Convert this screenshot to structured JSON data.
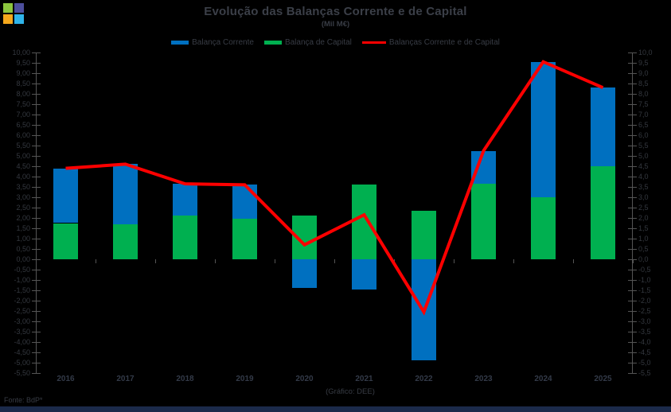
{
  "app": {
    "icon": {
      "name": "colored-squares-logo",
      "pane_colors": [
        "#8dc63f",
        "#4d4f9d",
        "#f5a81c",
        "#2fb4e9"
      ]
    },
    "footer": {
      "source": "Fonte: BdP*"
    },
    "bottom_bar_color": "#1b2a4a",
    "background_color": "#000000",
    "text_color": "#383c45",
    "axis_color": "#555555"
  },
  "chart_data": {
    "type": "bar",
    "subtype": "stacked-bars-with-line-overlay",
    "title": "Evolução das Balanças Corrente e de Capital",
    "subtitle": "(Mil M€)",
    "caption": "(Gráfico: DEE)",
    "categories": [
      "2016",
      "2017",
      "2018",
      "2019",
      "2020",
      "2021",
      "2022",
      "2023",
      "2024",
      "2025"
    ],
    "series": [
      {
        "name": "Balança Corrente",
        "type": "bar",
        "color": "#0070c0",
        "values": [
          2.65,
          2.9,
          1.55,
          1.65,
          -1.4,
          -1.45,
          -4.9,
          1.6,
          6.55,
          3.8
        ]
      },
      {
        "name": "Balança de Capital",
        "type": "bar",
        "color": "#00b050",
        "values": [
          1.75,
          1.7,
          2.1,
          1.95,
          2.1,
          3.6,
          2.35,
          3.65,
          3.0,
          4.5
        ]
      },
      {
        "name": "Balanças Corrente e de Capital",
        "type": "line",
        "color": "#ff0000",
        "values": [
          4.4,
          4.6,
          3.65,
          3.6,
          0.7,
          2.15,
          -2.55,
          5.25,
          9.55,
          8.3
        ]
      }
    ],
    "stacked": true,
    "legend_position": "top",
    "gridlines": false,
    "y_axis_left": {
      "min": -5.5,
      "max": 10.0,
      "step": 0.5,
      "labels": [
        "10,00",
        "9,50",
        "9,00",
        "8,50",
        "8,00",
        "7,50",
        "7,00",
        "6,50",
        "6,00",
        "5,50",
        "5,00",
        "4,50",
        "4,00",
        "3,50",
        "3,00",
        "2,50",
        "2,00",
        "1,50",
        "1,00",
        "0,50",
        "0,00",
        "-0,50",
        "-1,00",
        "-1,50",
        "-2,00",
        "-2,50",
        "-3,00",
        "-3,50",
        "-4,00",
        "-4,50",
        "-5,00",
        "-5,50"
      ]
    },
    "y_axis_right": {
      "min": -5.5,
      "max": 10.0,
      "step": 0.5,
      "labels": [
        "10,0",
        "9,5",
        "9,0",
        "8,5",
        "8,0",
        "7,5",
        "7,0",
        "6,5",
        "6,0",
        "5,5",
        "5,0",
        "4,5",
        "4,0",
        "3,5",
        "3,0",
        "2,5",
        "2,0",
        "1,5",
        "1,0",
        "0,5",
        "0,0",
        "-0,5",
        "-1,0",
        "-1,5",
        "-2,0",
        "-2,5",
        "-3,0",
        "-3,5",
        "-4,0",
        "-4,5",
        "-5,0",
        "-5,5"
      ]
    }
  }
}
